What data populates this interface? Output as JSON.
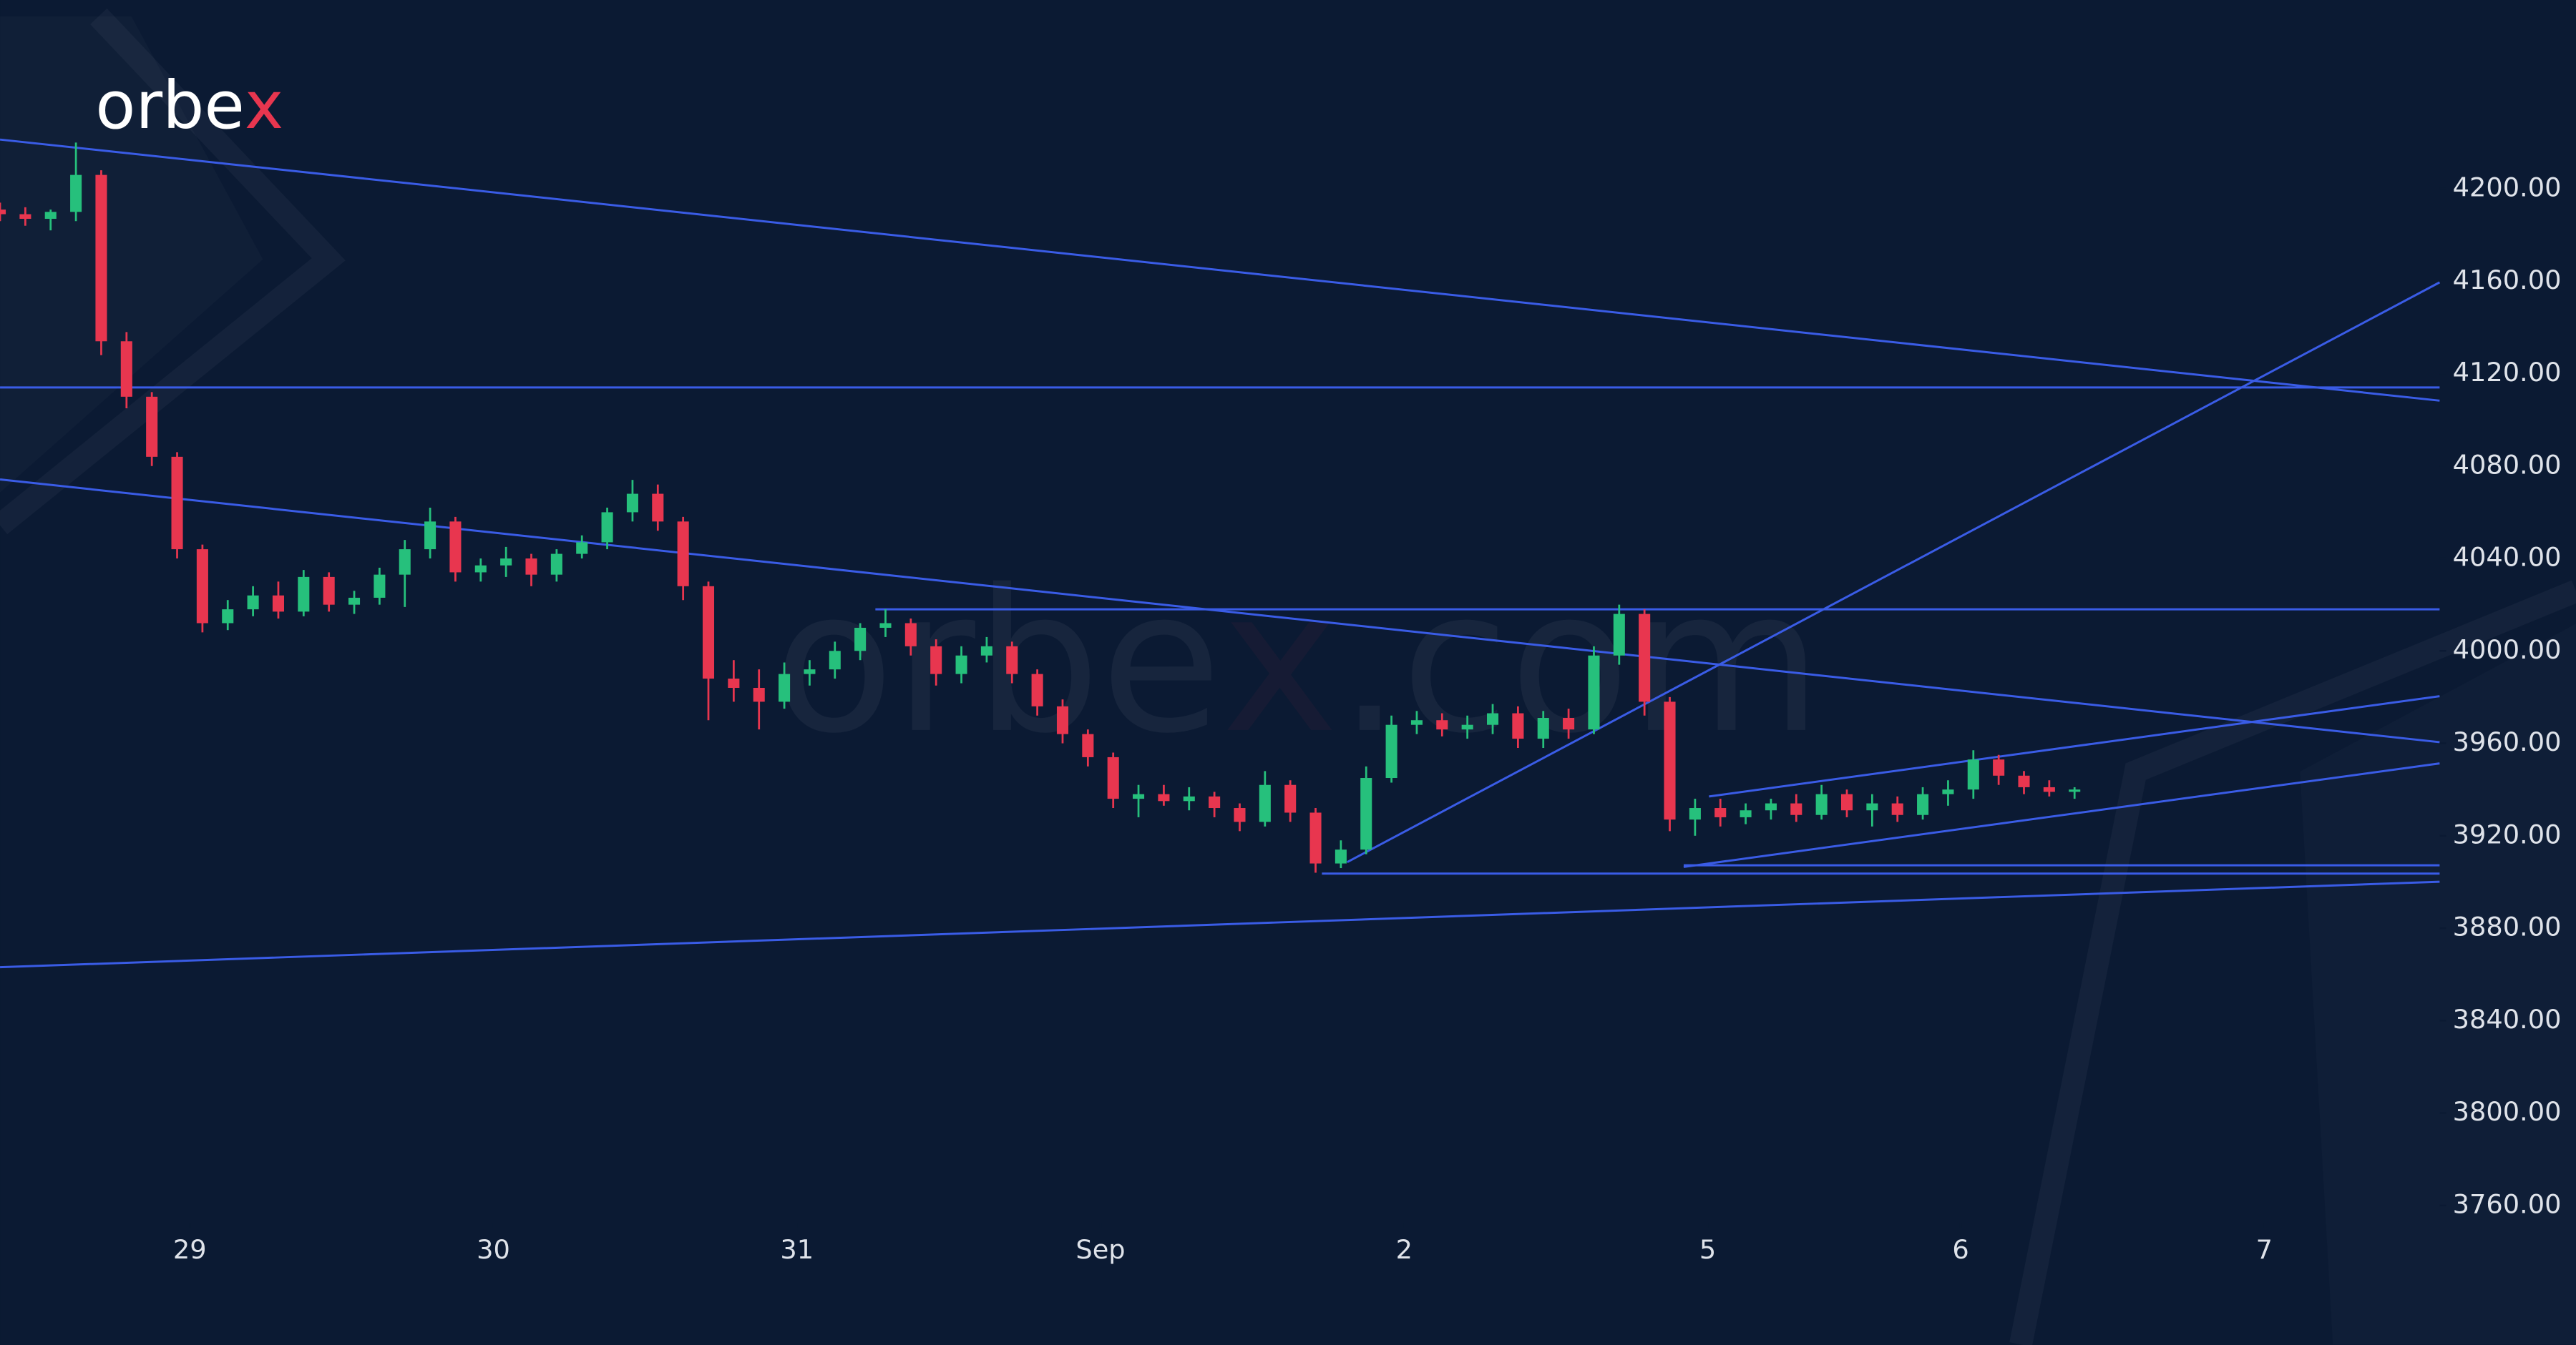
{
  "chart_data": {
    "type": "candlestick",
    "logo": {
      "main": "orbe",
      "accent": "x"
    },
    "watermark": {
      "main": "orbe",
      "accent": "x",
      "rest": ".com"
    },
    "x": [
      0,
      2,
      4,
      6,
      8,
      10,
      12,
      14,
      16,
      18,
      20,
      22,
      24,
      26,
      28,
      30,
      32,
      34,
      36,
      38,
      40,
      42,
      44,
      46,
      48,
      50,
      52,
      54,
      56,
      58,
      60,
      62,
      64,
      66,
      68,
      70,
      72,
      74,
      76,
      78,
      80,
      82,
      84,
      86,
      88,
      90,
      92,
      94,
      96,
      98,
      100,
      102,
      104,
      106,
      108,
      110,
      112,
      114,
      116,
      118,
      120,
      122,
      124,
      126,
      128,
      130,
      132,
      134,
      136,
      138,
      140,
      142,
      144,
      146,
      148,
      150,
      152,
      154,
      156,
      158,
      160,
      162,
      164
    ],
    "open": [
      4191,
      4189,
      4187,
      4190,
      4206,
      4134,
      4110,
      4084,
      4044,
      4012,
      4018,
      4024,
      4017,
      4032,
      4020,
      4023,
      4033,
      4044,
      4056,
      4034,
      4037,
      4040,
      4033,
      4042,
      4047,
      4060,
      4068,
      4056,
      4028,
      3988,
      3984,
      3978,
      3990,
      3992,
      4000,
      4010,
      4012,
      4002,
      3990,
      3998,
      4002,
      3990,
      3976,
      3964,
      3954,
      3936,
      3938,
      3935,
      3937,
      3932,
      3926,
      3942,
      3930,
      3908,
      3914,
      3945,
      3968,
      3970,
      3966,
      3968,
      3973,
      3962,
      3971,
      3966,
      3998,
      4016,
      3978,
      3927,
      3932,
      3928,
      3931,
      3934,
      3929,
      3938,
      3931,
      3934,
      3929,
      3938,
      3940,
      3953,
      3946,
      3941,
      3939
    ],
    "high": [
      4194,
      4192,
      4191,
      4220,
      4208,
      4138,
      4112,
      4086,
      4046,
      4022,
      4028,
      4030,
      4035,
      4034,
      4026,
      4036,
      4048,
      4062,
      4058,
      4040,
      4045,
      4042,
      4044,
      4050,
      4062,
      4074,
      4072,
      4058,
      4030,
      3996,
      3992,
      3995,
      3996,
      4004,
      4012,
      4018,
      4014,
      4005,
      4002,
      4006,
      4004,
      3992,
      3979,
      3966,
      3956,
      3942,
      3942,
      3941,
      3939,
      3934,
      3948,
      3944,
      3932,
      3918,
      3950,
      3972,
      3974,
      3973,
      3972,
      3977,
      3976,
      3974,
      3975,
      4002,
      4020,
      4018,
      3980,
      3936,
      3936,
      3934,
      3936,
      3938,
      3942,
      3940,
      3938,
      3937,
      3941,
      3944,
      3957,
      3955,
      3948,
      3944,
      3941
    ],
    "low": [
      4186,
      4184,
      4182,
      4186,
      4128,
      4105,
      4080,
      4040,
      4008,
      4009,
      4015,
      4014,
      4015,
      4017,
      4016,
      4020,
      4019,
      4040,
      4030,
      4030,
      4032,
      4028,
      4030,
      4040,
      4044,
      4056,
      4052,
      4022,
      3970,
      3978,
      3966,
      3975,
      3985,
      3988,
      3996,
      4006,
      3998,
      3985,
      3986,
      3995,
      3986,
      3972,
      3960,
      3950,
      3932,
      3928,
      3933,
      3931,
      3928,
      3922,
      3924,
      3926,
      3904,
      3906,
      3912,
      3943,
      3964,
      3963,
      3962,
      3964,
      3958,
      3958,
      3962,
      3964,
      3994,
      3972,
      3922,
      3920,
      3924,
      3925,
      3927,
      3926,
      3927,
      3928,
      3924,
      3926,
      3927,
      3933,
      3936,
      3942,
      3938,
      3937,
      3936
    ],
    "close": [
      4189,
      4187,
      4190,
      4206,
      4134,
      4110,
      4084,
      4044,
      4012,
      4018,
      4024,
      4017,
      4032,
      4020,
      4023,
      4033,
      4044,
      4056,
      4034,
      4037,
      4040,
      4033,
      4042,
      4047,
      4060,
      4068,
      4056,
      4028,
      3988,
      3984,
      3978,
      3990,
      3992,
      4000,
      4010,
      4012,
      4002,
      3990,
      3998,
      4002,
      3990,
      3976,
      3964,
      3954,
      3936,
      3938,
      3935,
      3937,
      3932,
      3926,
      3942,
      3930,
      3908,
      3914,
      3945,
      3968,
      3970,
      3966,
      3968,
      3973,
      3962,
      3971,
      3966,
      3998,
      4016,
      3978,
      3927,
      3932,
      3928,
      3931,
      3934,
      3929,
      3938,
      3931,
      3934,
      3929,
      3938,
      3940,
      3953,
      3946,
      3941,
      3939,
      3940
    ],
    "up_color": "#26c07c",
    "down_color": "#e8364f",
    "line_color": "#3a5ce6",
    "trendlines": [
      {
        "x": [
          0,
          192.86
        ],
        "y": [
          4221.3,
          4108.3
        ]
      },
      {
        "x": [
          0,
          192.86
        ],
        "y": [
          4114,
          4114
        ]
      },
      {
        "x": [
          0,
          192.86
        ],
        "y": [
          4074.2,
          3960.5
        ]
      },
      {
        "x": [
          106.5,
          192.86
        ],
        "y": [
          3908.6,
          4159.5
        ]
      },
      {
        "x": [
          69.2,
          192.86
        ],
        "y": [
          4018,
          4018
        ]
      },
      {
        "x": [
          104.5,
          192.86
        ],
        "y": [
          3903.6,
          3903.6
        ]
      },
      {
        "x": [
          0,
          192.86
        ],
        "y": [
          3863.1,
          3900.1
        ]
      },
      {
        "x": [
          133.1,
          192.86
        ],
        "y": [
          3906.5,
          3951.3
        ]
      },
      {
        "x": [
          135.1,
          192.86
        ],
        "y": [
          3937,
          3980.4
        ]
      },
      {
        "x": [
          133.1,
          192.86
        ],
        "y": [
          3907.2,
          3907.2
        ]
      }
    ],
    "xlim": [
      0,
      192.86
    ],
    "ylim": [
      3699.6,
      4281.7
    ],
    "xticks": [
      {
        "value": 15,
        "label": "29"
      },
      {
        "value": 39,
        "label": "30"
      },
      {
        "value": 63,
        "label": "31"
      },
      {
        "value": 87,
        "label": "Sep"
      },
      {
        "value": 111,
        "label": "2"
      },
      {
        "value": 135,
        "label": "5"
      },
      {
        "value": 155,
        "label": "6"
      },
      {
        "value": 179,
        "label": "7"
      }
    ],
    "yticks": [
      {
        "value": 4200,
        "label": "4200.00"
      },
      {
        "value": 4160,
        "label": "4160.00"
      },
      {
        "value": 4120,
        "label": "4120.00"
      },
      {
        "value": 4080,
        "label": "4080.00"
      },
      {
        "value": 4040,
        "label": "4040.00"
      },
      {
        "value": 4000,
        "label": "4000.00"
      },
      {
        "value": 3960,
        "label": "3960.00"
      },
      {
        "value": 3920,
        "label": "3920.00"
      },
      {
        "value": 3880,
        "label": "3880.00"
      },
      {
        "value": 3840,
        "label": "3840.00"
      },
      {
        "value": 3800,
        "label": "3800.00"
      },
      {
        "value": 3760,
        "label": "3760.00"
      }
    ]
  }
}
